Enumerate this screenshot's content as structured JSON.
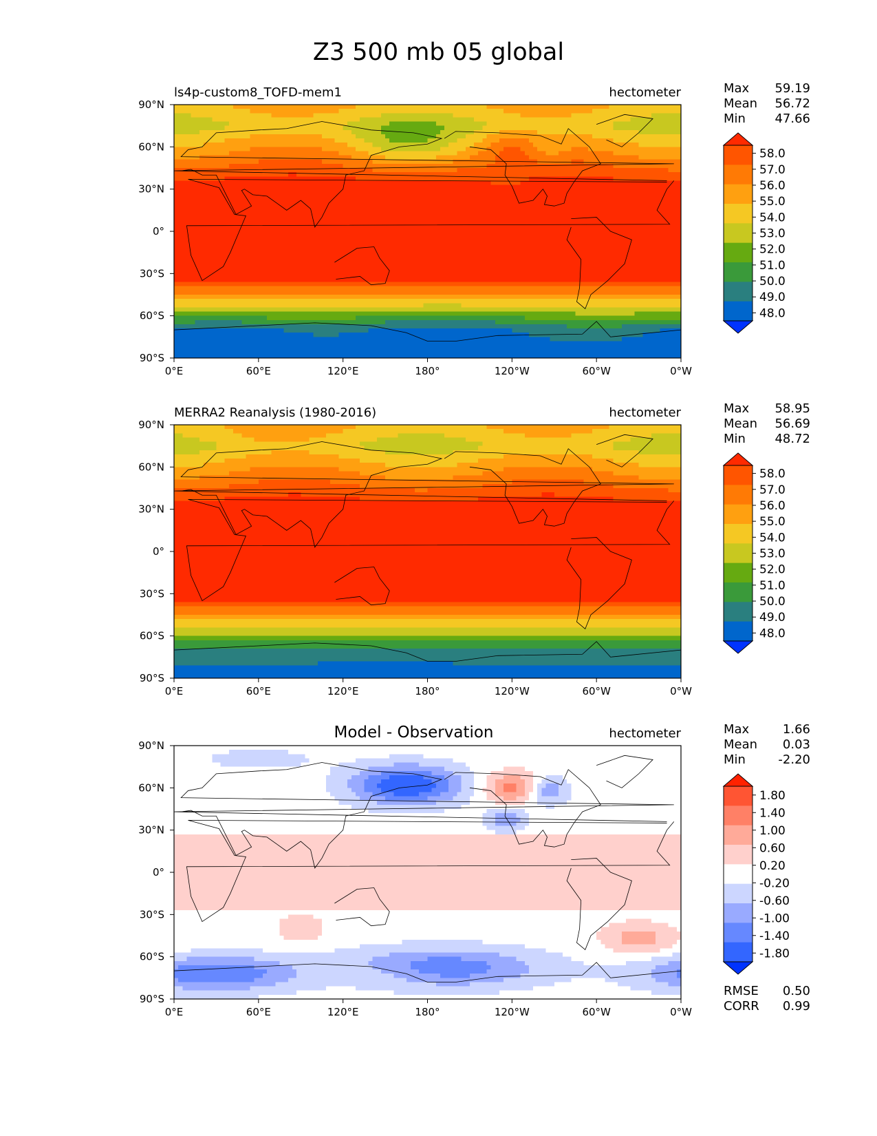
{
  "figure_title": "Z3 500 mb 05 global",
  "colors": {
    "model_levels": [
      "#0033ff",
      "#0066cc",
      "#2a7f7f",
      "#3a9a3a",
      "#66aa11",
      "#c8c820",
      "#f5c823",
      "#ffa010",
      "#ff7a05",
      "#ff5500",
      "#ff2a00"
    ],
    "diff_levels": [
      "#0033ff",
      "#3366ff",
      "#6688ff",
      "#99aaff",
      "#ccd6ff",
      "#ffffff",
      "#ffd0cc",
      "#ffaa99",
      "#ff8066",
      "#ff5533",
      "#ff2200"
    ],
    "coast": "#000000"
  },
  "x_ticks": [
    "0°E",
    "60°E",
    "120°E",
    "180°",
    "120°W",
    "60°W",
    "0°W"
  ],
  "y_ticks": [
    "90°N",
    "60°N",
    "30°N",
    "0°",
    "30°S",
    "60°S",
    "90°S"
  ],
  "chart_data": [
    {
      "type": "heatmap",
      "left_title": "ls4p-custom8_TOFD-mem1",
      "center_title": "",
      "units": "hectometer",
      "stats": {
        "max_label": "Max",
        "max": "59.19",
        "mean_label": "Mean",
        "mean": "56.72",
        "min_label": "Min",
        "min": "47.66"
      },
      "colorbar_ticks": [
        "58.0",
        "57.0",
        "56.0",
        "55.0",
        "54.0",
        "53.0",
        "52.0",
        "51.0",
        "50.0",
        "49.0",
        "48.0"
      ],
      "scale": "model",
      "xlim": [
        0,
        360
      ],
      "ylim": [
        -90,
        90
      ]
    },
    {
      "type": "heatmap",
      "left_title": "MERRA2 Reanalysis (1980-2016)",
      "center_title": "",
      "units": "hectometer",
      "stats": {
        "max_label": "Max",
        "max": "58.95",
        "mean_label": "Mean",
        "mean": "56.69",
        "min_label": "Min",
        "min": "48.72"
      },
      "colorbar_ticks": [
        "58.0",
        "57.0",
        "56.0",
        "55.0",
        "54.0",
        "53.0",
        "52.0",
        "51.0",
        "50.0",
        "49.0",
        "48.0"
      ],
      "scale": "model",
      "xlim": [
        0,
        360
      ],
      "ylim": [
        -90,
        90
      ]
    },
    {
      "type": "heatmap",
      "left_title": "",
      "center_title": "Model - Observation",
      "units": "hectometer",
      "stats": {
        "max_label": "Max",
        "max": "1.66",
        "mean_label": "Mean",
        "mean": "0.03",
        "min_label": "Min",
        "min": "-2.20"
      },
      "colorbar_ticks": [
        "1.80",
        "1.40",
        "1.00",
        "0.60",
        "0.20",
        "-0.20",
        "-0.60",
        "-1.00",
        "-1.40",
        "-1.80"
      ],
      "scale": "diff",
      "metrics": {
        "rmse_label": "RMSE",
        "rmse": "0.50",
        "corr_label": "CORR",
        "corr": "0.99"
      },
      "xlim": [
        0,
        360
      ],
      "ylim": [
        -90,
        90
      ]
    }
  ]
}
